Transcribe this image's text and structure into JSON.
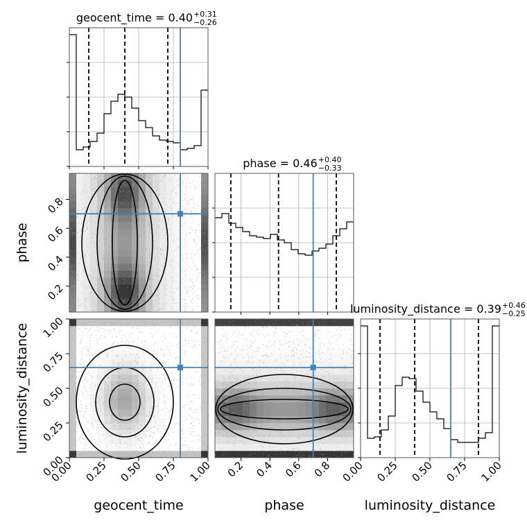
{
  "chart_data": {
    "type": "corner",
    "parameters": [
      "geocent_time",
      "phase",
      "luminosity_distance"
    ],
    "truths": {
      "geocent_time": 0.8,
      "phase": 0.7,
      "luminosity_distance": 0.65
    },
    "truth_color": "#4682b4",
    "titles": [
      {
        "param": "geocent_time",
        "prefix": "geocent_time = 0.40",
        "plus": "+0.31",
        "minus": "−0.26"
      },
      {
        "param": "phase",
        "prefix": "phase = 0.46",
        "plus": "+0.40",
        "minus": "−0.33"
      },
      {
        "param": "luminosity_distance",
        "prefix": "luminosity_distance = 0.39",
        "plus": "+0.46",
        "minus": "−0.25"
      }
    ],
    "ranges": {
      "geocent_time": [
        0,
        1
      ],
      "phase": [
        0.02,
        0.98
      ],
      "luminosity_distance": [
        0,
        1
      ]
    },
    "quantile_lines": {
      "geocent_time": [
        0.14,
        0.4,
        0.71
      ],
      "phase": [
        0.13,
        0.46,
        0.86
      ],
      "luminosity_distance": [
        0.14,
        0.39,
        0.85
      ]
    },
    "ticks": {
      "geocent_time": {
        "values": [
          0,
          0.25,
          0.5,
          0.75,
          1.0
        ],
        "labels": [
          "0.00",
          "0.25",
          "0.50",
          "0.75",
          "1.00"
        ]
      },
      "phase": {
        "values": [
          0.2,
          0.4,
          0.6,
          0.8
        ],
        "labels": [
          "0.2",
          "0.4",
          "0.6",
          "0.8"
        ]
      },
      "luminosity_distance": {
        "values": [
          0,
          0.25,
          0.5,
          0.75,
          1.0
        ],
        "labels": [
          "0.00",
          "0.25",
          "0.50",
          "0.75",
          "1.00"
        ]
      }
    },
    "histograms": {
      "geocent_time": [
        0.95,
        0.12,
        0.14,
        0.18,
        0.24,
        0.38,
        0.47,
        0.52,
        0.5,
        0.42,
        0.33,
        0.28,
        0.22,
        0.19,
        0.18,
        0.17,
        0.12,
        0.13,
        0.15,
        0.55
      ],
      "phase": [
        0.68,
        0.71,
        0.64,
        0.61,
        0.58,
        0.55,
        0.54,
        0.53,
        0.56,
        0.52,
        0.5,
        0.45,
        0.42,
        0.41,
        0.44,
        0.46,
        0.49,
        0.55,
        0.6,
        0.65
      ],
      "luminosity_distance": [
        0.95,
        0.14,
        0.15,
        0.2,
        0.3,
        0.52,
        0.58,
        0.57,
        0.48,
        0.4,
        0.33,
        0.28,
        0.21,
        0.13,
        0.11,
        0.11,
        0.11,
        0.14,
        0.18,
        0.95
      ]
    },
    "grid": true
  }
}
